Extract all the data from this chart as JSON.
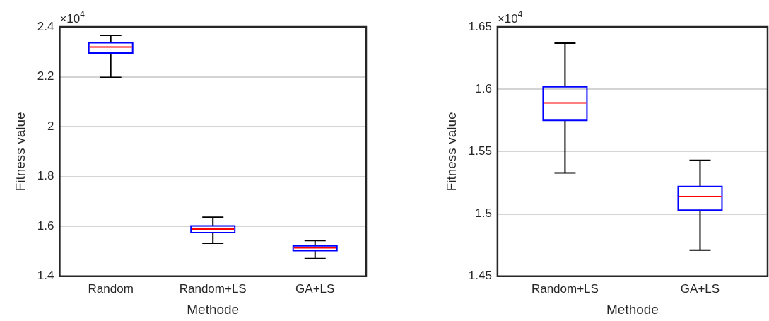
{
  "chart_data": [
    {
      "type": "box",
      "xlabel": "Methode",
      "ylabel": "Fitness value",
      "annotations": [
        "×10$^{4}$"
      ],
      "categories": [
        "Random",
        "Random+LS",
        "GA+LS"
      ],
      "boxes": [
        {
          "low": 2.197,
          "q1": 2.295,
          "median": 2.319,
          "q3": 2.336,
          "high": 2.366
        },
        {
          "low": 1.533,
          "q1": 1.575,
          "median": 1.589,
          "q3": 1.602,
          "high": 1.637
        },
        {
          "low": 1.471,
          "q1": 1.503,
          "median": 1.514,
          "q3": 1.522,
          "high": 1.543
        }
      ],
      "color": "#0000ff",
      "ylim": [
        1.4,
        2.4
      ],
      "yticks": [
        1.4,
        1.6,
        1.8,
        2,
        2.2,
        2.4
      ],
      "grid": "y"
    },
    {
      "type": "box",
      "xlabel": "Methode",
      "ylabel": "Fitness value",
      "annotations": [
        "×10$^{4}$"
      ],
      "categories": [
        "Random+LS",
        "GA+LS"
      ],
      "boxes": [
        {
          "low": 1.533,
          "q1": 1.575,
          "median": 1.589,
          "q3": 1.602,
          "high": 1.637
        },
        {
          "low": 1.471,
          "q1": 1.503,
          "median": 1.514,
          "q3": 1.522,
          "high": 1.543
        }
      ],
      "color": "#0000ff",
      "ylim": [
        1.45,
        1.65
      ],
      "yticks": [
        1.45,
        1.5,
        1.55,
        1.6,
        1.65
      ],
      "grid": "y"
    }
  ]
}
